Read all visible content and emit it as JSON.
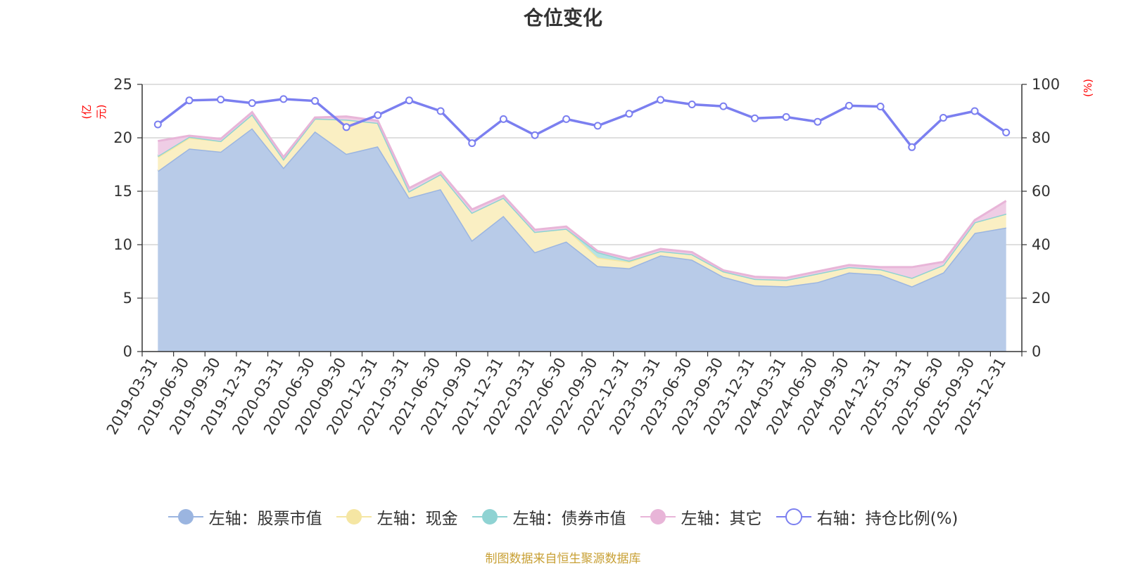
{
  "chart_data": {
    "type": "area",
    "title": "仓位变化",
    "source": "制图数据来自恒生聚源数据库",
    "left_unit": "(亿元)",
    "right_unit": "(%)",
    "left_axis": {
      "min": 0,
      "max": 25,
      "ticks": [
        "0",
        "5",
        "10",
        "15",
        "20",
        "25"
      ]
    },
    "right_axis": {
      "min": 0,
      "max": 100,
      "ticks": [
        "0",
        "20",
        "40",
        "60",
        "80",
        "100"
      ]
    },
    "categories": [
      "2019-03-31",
      "2019-06-30",
      "2019-09-30",
      "2019-12-31",
      "2020-03-31",
      "2020-06-30",
      "2020-09-30",
      "2020-12-31",
      "2021-03-31",
      "2021-06-30",
      "2021-09-30",
      "2021-12-31",
      "2022-03-31",
      "2022-06-30",
      "2022-09-30",
      "2022-12-31",
      "2023-03-31",
      "2023-06-30",
      "2023-09-30",
      "2023-12-31",
      "2024-03-31",
      "2024-06-30",
      "2024-09-30",
      "2024-12-31",
      "2025-03-31",
      "2025-06-30",
      "2025-09-30",
      "2025-12-31"
    ],
    "series": [
      {
        "name": "左轴：股票市值",
        "axis": "left",
        "color": "#9bb5e0",
        "fill": "#b8cbe8",
        "values": [
          16.9,
          19.0,
          18.7,
          20.9,
          17.2,
          20.6,
          18.5,
          19.2,
          14.4,
          15.2,
          10.4,
          12.7,
          9.3,
          10.3,
          8.0,
          7.8,
          9.0,
          8.6,
          7.0,
          6.2,
          6.1,
          6.5,
          7.4,
          7.2,
          6.1,
          7.4,
          11.1,
          11.6
        ]
      },
      {
        "name": "左轴：现金",
        "axis": "left",
        "color": "#f5e6a3",
        "fill": "#faefc3",
        "values": [
          1.3,
          1.0,
          1.0,
          1.3,
          0.8,
          1.2,
          3.2,
          2.2,
          0.6,
          1.4,
          2.6,
          1.7,
          1.9,
          1.2,
          0.8,
          0.6,
          0.4,
          0.5,
          0.5,
          0.6,
          0.6,
          0.8,
          0.5,
          0.5,
          0.8,
          0.7,
          1.0,
          1.3
        ]
      },
      {
        "name": "左轴：债券市值",
        "axis": "left",
        "color": "#8fd3d3",
        "fill": "#b5e3e3",
        "values": [
          0.1,
          0.1,
          0.0,
          0.0,
          0.0,
          0.0,
          0.0,
          0.0,
          0.0,
          0.0,
          0.0,
          0.0,
          0.0,
          0.0,
          0.5,
          0.1,
          0.0,
          0.0,
          0.0,
          0.0,
          0.0,
          0.0,
          0.0,
          0.0,
          0.0,
          0.0,
          0.0,
          0.0
        ]
      },
      {
        "name": "左轴：其它",
        "axis": "left",
        "color": "#e8b5d8",
        "fill": "#efcde5",
        "values": [
          1.4,
          0.1,
          0.2,
          0.2,
          0.2,
          0.1,
          0.3,
          0.2,
          0.3,
          0.2,
          0.3,
          0.2,
          0.2,
          0.2,
          0.1,
          0.2,
          0.2,
          0.2,
          0.1,
          0.2,
          0.2,
          0.2,
          0.2,
          0.2,
          1.0,
          0.3,
          0.2,
          1.2
        ]
      },
      {
        "name": "右轴：持仓比例(%)",
        "axis": "right",
        "color": "#7b7ff0",
        "values": [
          85,
          94,
          94.3,
          93,
          94.5,
          93.8,
          84,
          88.5,
          94,
          90,
          78,
          87,
          81,
          87,
          84.5,
          89,
          94.2,
          92.5,
          91.8,
          87.3,
          87.8,
          86,
          92,
          91.7,
          76.5,
          87.5,
          90,
          82
        ]
      }
    ]
  }
}
